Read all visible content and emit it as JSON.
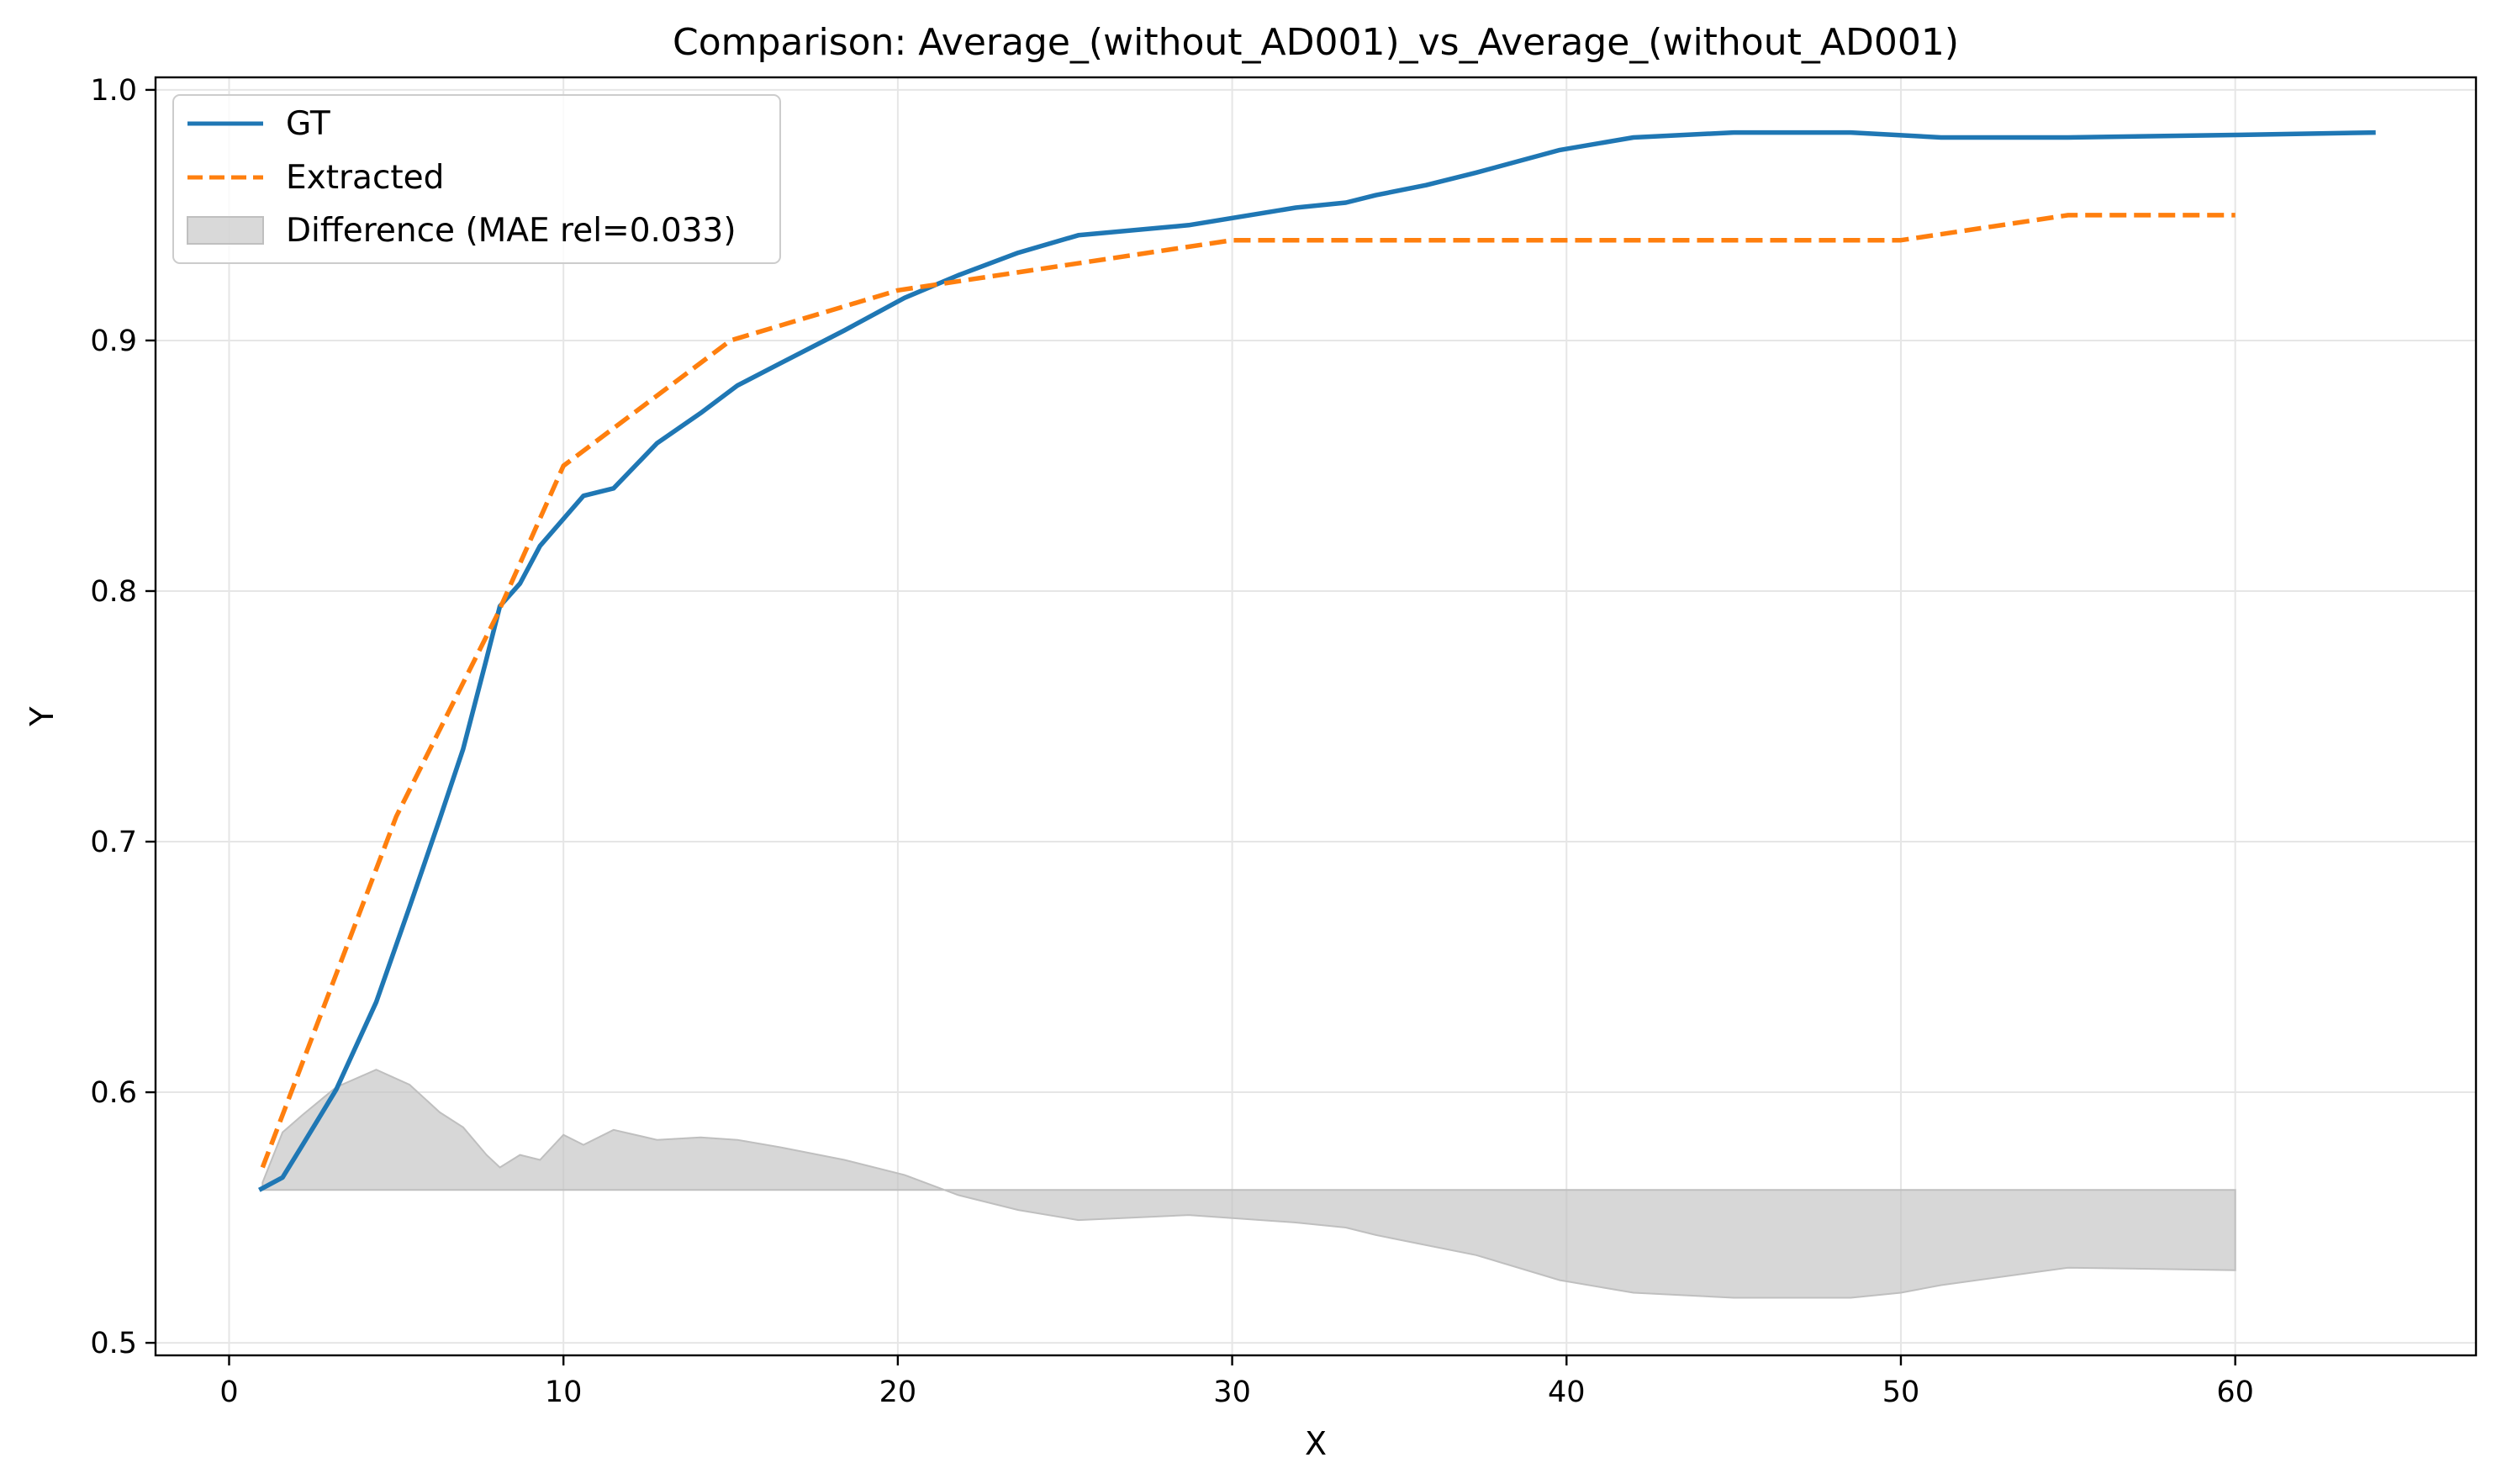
{
  "chart_data": {
    "type": "line",
    "title": "Comparison: Average_(without_AD001)_vs_Average_(without_AD001)",
    "xlabel": "X",
    "ylabel": "Y",
    "xlim": [
      -2.2,
      67.2
    ],
    "ylim": [
      0.495,
      1.005
    ],
    "xticks": [
      0,
      10,
      20,
      30,
      40,
      50,
      60
    ],
    "yticks": [
      0.5,
      0.6,
      0.7,
      0.8,
      0.9,
      1.0
    ],
    "xtick_labels": [
      "0",
      "10",
      "20",
      "30",
      "40",
      "50",
      "60"
    ],
    "ytick_labels": [
      "0.5",
      "0.6",
      "0.7",
      "0.8",
      "0.9",
      "1.0"
    ],
    "grid": true,
    "legend_position": "top-left",
    "colors": {
      "gt": "#1f77b4",
      "extracted": "#ff7f0e",
      "difference": "#bfbfbf"
    },
    "series": [
      {
        "name": "GT",
        "style": "solid",
        "x": [
          0.9,
          1.6,
          2.2,
          3.2,
          4.4,
          5.4,
          6.3,
          7.0,
          7.7,
          8.1,
          8.7,
          9.3,
          10.6,
          11.5,
          12.8,
          14.1,
          15.2,
          16.5,
          18.4,
          20.2,
          21.8,
          23.6,
          25.4,
          28.7,
          31.9,
          33.4,
          34.3,
          35.8,
          37.3,
          39.8,
          42.0,
          45.0,
          48.5,
          51.2,
          55.0,
          60.0,
          64.2
        ],
        "y": [
          0.561,
          0.566,
          0.579,
          0.601,
          0.636,
          0.674,
          0.709,
          0.737,
          0.773,
          0.794,
          0.803,
          0.818,
          0.838,
          0.841,
          0.859,
          0.871,
          0.882,
          0.891,
          0.904,
          0.917,
          0.926,
          0.935,
          0.942,
          0.946,
          0.953,
          0.955,
          0.958,
          0.962,
          0.967,
          0.976,
          0.981,
          0.983,
          0.983,
          0.981,
          0.981,
          0.982,
          0.983
        ]
      },
      {
        "name": "Extracted",
        "style": "dashed",
        "x": [
          1.0,
          5.0,
          8.0,
          10.0,
          15.0,
          20.0,
          25.0,
          30.0,
          35.0,
          40.0,
          45.0,
          50.0,
          55.0,
          60.0
        ],
        "y": [
          0.57,
          0.71,
          0.79,
          0.85,
          0.9,
          0.92,
          0.93,
          0.94,
          0.94,
          0.94,
          0.94,
          0.94,
          0.95,
          0.95
        ]
      }
    ],
    "difference_band": {
      "name": "Difference (MAE rel=0.033)",
      "baseline": 0.561,
      "x": [
        1.0,
        1.6,
        2.2,
        3.2,
        4.4,
        5.4,
        6.3,
        7.0,
        7.7,
        8.1,
        8.7,
        9.3,
        10.0,
        10.6,
        11.5,
        12.8,
        14.1,
        15.2,
        16.5,
        18.4,
        20.2,
        21.8,
        23.6,
        25.4,
        28.7,
        31.9,
        33.4,
        34.3,
        35.8,
        37.3,
        39.8,
        42.0,
        45.0,
        48.5,
        50.0,
        51.2,
        55.0,
        60.0
      ],
      "y": [
        0.564,
        0.584,
        0.591,
        0.602,
        0.609,
        0.603,
        0.592,
        0.586,
        0.575,
        0.57,
        0.575,
        0.573,
        0.583,
        0.579,
        0.585,
        0.581,
        0.582,
        0.581,
        0.578,
        0.573,
        0.567,
        0.559,
        0.553,
        0.549,
        0.551,
        0.548,
        0.546,
        0.543,
        0.539,
        0.535,
        0.525,
        0.52,
        0.518,
        0.518,
        0.52,
        0.523,
        0.53,
        0.529
      ]
    }
  }
}
